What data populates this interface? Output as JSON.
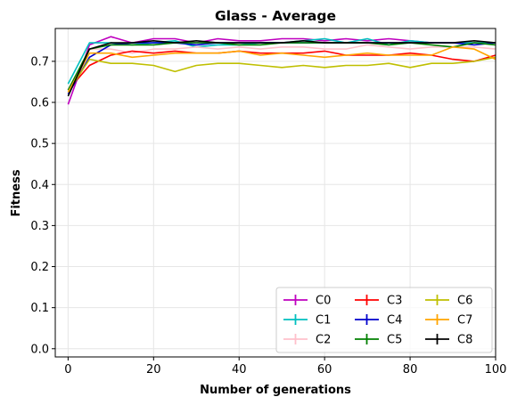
{
  "chart_data": {
    "type": "line",
    "title": "Glass - Average",
    "xlabel": "Number of generations",
    "ylabel": "Fitness",
    "xlim": [
      -3,
      100
    ],
    "ylim": [
      -0.02,
      0.78
    ],
    "xticks": [
      0,
      20,
      40,
      60,
      80,
      100
    ],
    "yticks": [
      0.0,
      0.1,
      0.2,
      0.3,
      0.4,
      0.5,
      0.6,
      0.7
    ],
    "xtick_labels": [
      "0",
      "20",
      "40",
      "60",
      "80",
      "100"
    ],
    "ytick_labels": [
      "0.0",
      "0.1",
      "0.2",
      "0.3",
      "0.4",
      "0.5",
      "0.6",
      "0.7"
    ],
    "grid": true,
    "legend_position": "lower-right",
    "legend_columns": 3,
    "x": [
      0,
      5,
      10,
      15,
      20,
      25,
      30,
      35,
      40,
      45,
      50,
      55,
      60,
      65,
      70,
      75,
      80,
      85,
      90,
      95,
      100
    ],
    "series": [
      {
        "name": "C0",
        "color": "#bf00bf",
        "values": [
          0.595,
          0.74,
          0.76,
          0.745,
          0.755,
          0.755,
          0.745,
          0.755,
          0.75,
          0.75,
          0.755,
          0.755,
          0.75,
          0.755,
          0.75,
          0.755,
          0.75,
          0.745,
          0.745,
          0.745,
          0.745
        ]
      },
      {
        "name": "C1",
        "color": "#00bfbf",
        "values": [
          0.645,
          0.745,
          0.745,
          0.74,
          0.745,
          0.75,
          0.735,
          0.74,
          0.74,
          0.745,
          0.745,
          0.75,
          0.755,
          0.745,
          0.755,
          0.74,
          0.75,
          0.745,
          0.745,
          0.745,
          0.745
        ]
      },
      {
        "name": "C2",
        "color": "#ffc0cb",
        "values": [
          0.63,
          0.73,
          0.73,
          0.72,
          0.73,
          0.73,
          0.735,
          0.73,
          0.735,
          0.73,
          0.735,
          0.735,
          0.73,
          0.73,
          0.74,
          0.735,
          0.73,
          0.735,
          0.735,
          0.735,
          0.73
        ]
      },
      {
        "name": "C3",
        "color": "#ff0000",
        "values": [
          0.63,
          0.69,
          0.715,
          0.725,
          0.72,
          0.725,
          0.72,
          0.72,
          0.725,
          0.72,
          0.72,
          0.72,
          0.725,
          0.715,
          0.715,
          0.715,
          0.72,
          0.715,
          0.705,
          0.7,
          0.715
        ]
      },
      {
        "name": "C4",
        "color": "#0000cc",
        "values": [
          0.62,
          0.71,
          0.74,
          0.745,
          0.745,
          0.745,
          0.74,
          0.745,
          0.745,
          0.745,
          0.745,
          0.745,
          0.745,
          0.745,
          0.745,
          0.745,
          0.745,
          0.745,
          0.745,
          0.74,
          0.745
        ]
      },
      {
        "name": "C5",
        "color": "#008000",
        "values": [
          0.63,
          0.73,
          0.74,
          0.74,
          0.74,
          0.745,
          0.745,
          0.745,
          0.74,
          0.74,
          0.745,
          0.745,
          0.745,
          0.745,
          0.745,
          0.74,
          0.745,
          0.74,
          0.735,
          0.745,
          0.74
        ]
      },
      {
        "name": "C6",
        "color": "#bfbf00",
        "values": [
          0.625,
          0.705,
          0.695,
          0.695,
          0.69,
          0.675,
          0.69,
          0.695,
          0.695,
          0.69,
          0.685,
          0.69,
          0.685,
          0.69,
          0.69,
          0.695,
          0.685,
          0.695,
          0.695,
          0.7,
          0.71
        ]
      },
      {
        "name": "C7",
        "color": "#ffa500",
        "values": [
          0.625,
          0.72,
          0.72,
          0.71,
          0.715,
          0.72,
          0.72,
          0.72,
          0.725,
          0.715,
          0.72,
          0.715,
          0.71,
          0.715,
          0.72,
          0.715,
          0.715,
          0.715,
          0.735,
          0.73,
          0.705
        ]
      },
      {
        "name": "C8",
        "color": "#000000",
        "values": [
          0.615,
          0.73,
          0.745,
          0.745,
          0.75,
          0.745,
          0.75,
          0.745,
          0.745,
          0.745,
          0.745,
          0.75,
          0.745,
          0.745,
          0.745,
          0.745,
          0.745,
          0.745,
          0.745,
          0.75,
          0.745
        ]
      }
    ]
  }
}
